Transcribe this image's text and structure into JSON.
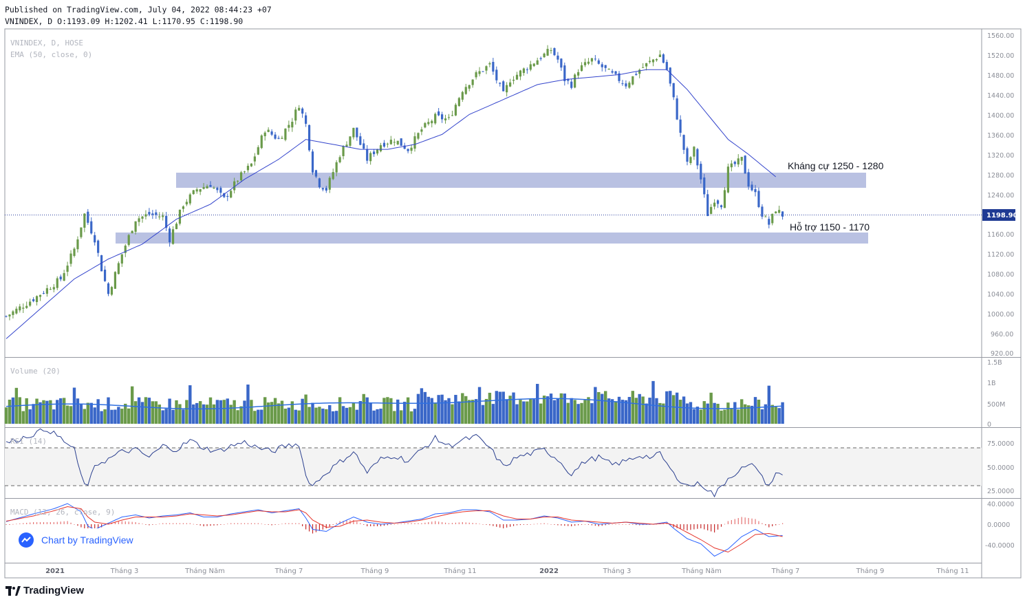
{
  "header": {
    "published": "Published on TradingView.com, July 04, 2022 08:44:23 +07",
    "ohlc": "VNINDEX, D O:1193.09 H:1202.41 L:1170.95 C:1198.90"
  },
  "panes": {
    "price": {
      "title": "VNINDEX, D, HOSE",
      "ema_label": "EMA (50, close, 0)"
    },
    "volume": {
      "title": "Volume (20)"
    },
    "rsi": {
      "title": "RSI (14)"
    },
    "macd": {
      "title": "MACD (12, 26, close, 9)"
    }
  },
  "annotations": {
    "resistance": "Kháng cự 1250 - 1280",
    "support": "Hỗ trợ 1150 - 1170"
  },
  "byline": "Chart by TradingView",
  "footer_brand": "TradingView",
  "colors": {
    "up": "#6a9a4a",
    "down": "#3a67c8",
    "ema": "#3344cc",
    "zone": "#b9c1e2",
    "rsi": "#2a3f8f",
    "macd": "#2962ff",
    "signal": "#e5332a"
  },
  "chart_data": [
    {
      "type": "candlestick",
      "symbol": "VNINDEX",
      "interval": "D",
      "exchange": "HOSE",
      "last_price": "1198.90",
      "y_ticks": [
        "1560.00",
        "1520.00",
        "1480.00",
        "1440.00",
        "1400.00",
        "1360.00",
        "1320.00",
        "1280.00",
        "1240.00",
        "1200.00",
        "1160.00",
        "1120.00",
        "1080.00",
        "1040.00",
        "1000.00",
        "960.00",
        "920.00"
      ],
      "ylim": [
        920,
        1570
      ],
      "x_ticks": [
        "2021",
        "Tháng 3",
        "Tháng Năm",
        "Tháng 7",
        "Tháng 9",
        "Tháng 11",
        "2022",
        "Tháng 3",
        "Tháng Năm",
        "Tháng 7",
        "Tháng 9",
        "Tháng 11"
      ],
      "close_path": [
        [
          0,
          995
        ],
        [
          8,
          1030
        ],
        [
          16,
          1070
        ],
        [
          20,
          1130
        ],
        [
          23,
          1200
        ],
        [
          26,
          1150
        ],
        [
          28,
          1090
        ],
        [
          30,
          1040
        ],
        [
          34,
          1120
        ],
        [
          38,
          1190
        ],
        [
          42,
          1200
        ],
        [
          46,
          1195
        ],
        [
          48,
          1150
        ],
        [
          52,
          1220
        ],
        [
          56,
          1250
        ],
        [
          60,
          1260
        ],
        [
          64,
          1230
        ],
        [
          68,
          1270
        ],
        [
          72,
          1300
        ],
        [
          76,
          1370
        ],
        [
          80,
          1350
        ],
        [
          84,
          1390
        ],
        [
          86,
          1420
        ],
        [
          88,
          1380
        ],
        [
          90,
          1290
        ],
        [
          92,
          1260
        ],
        [
          94,
          1250
        ],
        [
          98,
          1320
        ],
        [
          102,
          1370
        ],
        [
          106,
          1310
        ],
        [
          110,
          1340
        ],
        [
          114,
          1350
        ],
        [
          118,
          1330
        ],
        [
          122,
          1370
        ],
        [
          126,
          1395
        ],
        [
          130,
          1390
        ],
        [
          134,
          1450
        ],
        [
          138,
          1480
        ],
        [
          142,
          1500
        ],
        [
          146,
          1440
        ],
        [
          148,
          1470
        ],
        [
          152,
          1490
        ],
        [
          156,
          1510
        ],
        [
          160,
          1530
        ],
        [
          162,
          1510
        ],
        [
          164,
          1470
        ],
        [
          166,
          1460
        ],
        [
          168,
          1490
        ],
        [
          172,
          1510
        ],
        [
          176,
          1490
        ],
        [
          180,
          1470
        ],
        [
          182,
          1460
        ],
        [
          186,
          1490
        ],
        [
          190,
          1510
        ],
        [
          192,
          1520
        ],
        [
          194,
          1490
        ],
        [
          196,
          1430
        ],
        [
          198,
          1360
        ],
        [
          200,
          1300
        ],
        [
          202,
          1330
        ],
        [
          204,
          1270
        ],
        [
          206,
          1200
        ],
        [
          208,
          1230
        ],
        [
          210,
          1220
        ],
        [
          212,
          1290
        ],
        [
          214,
          1300
        ],
        [
          216,
          1310
        ],
        [
          218,
          1260
        ],
        [
          220,
          1240
        ],
        [
          222,
          1200
        ],
        [
          224,
          1180
        ],
        [
          226,
          1210
        ],
        [
          228,
          1198
        ]
      ],
      "ema_path": [
        [
          0,
          950
        ],
        [
          10,
          1010
        ],
        [
          20,
          1070
        ],
        [
          30,
          1110
        ],
        [
          40,
          1140
        ],
        [
          50,
          1190
        ],
        [
          60,
          1220
        ],
        [
          70,
          1270
        ],
        [
          80,
          1310
        ],
        [
          88,
          1350
        ],
        [
          96,
          1340
        ],
        [
          104,
          1330
        ],
        [
          112,
          1330
        ],
        [
          120,
          1340
        ],
        [
          128,
          1360
        ],
        [
          136,
          1400
        ],
        [
          146,
          1430
        ],
        [
          156,
          1460
        ],
        [
          164,
          1470
        ],
        [
          172,
          1475
        ],
        [
          180,
          1480
        ],
        [
          188,
          1490
        ],
        [
          194,
          1490
        ],
        [
          200,
          1450
        ],
        [
          206,
          1400
        ],
        [
          212,
          1350
        ],
        [
          218,
          1320
        ],
        [
          226,
          1275
        ]
      ],
      "zones": [
        {
          "label": "Kháng cự 1250 - 1280",
          "from": 1250,
          "to": 1280
        },
        {
          "label": "Hỗ trợ 1150 - 1170",
          "from": 1150,
          "to": 1170
        }
      ]
    },
    {
      "type": "bar",
      "name": "Volume",
      "y_ticks": [
        "1.5B",
        "1B",
        "500M",
        "0"
      ],
      "ylim": [
        0,
        1500000000
      ],
      "ma_length": 20
    },
    {
      "type": "line",
      "name": "RSI (14)",
      "y_ticks": [
        "75.0000",
        "50.0000",
        "25.0000"
      ],
      "ylim": [
        15,
        95
      ],
      "bands": [
        30,
        70
      ],
      "path": [
        [
          0,
          75
        ],
        [
          6,
          82
        ],
        [
          12,
          90
        ],
        [
          16,
          80
        ],
        [
          20,
          68
        ],
        [
          22,
          40
        ],
        [
          24,
          28
        ],
        [
          26,
          52
        ],
        [
          30,
          58
        ],
        [
          34,
          66
        ],
        [
          38,
          68
        ],
        [
          42,
          60
        ],
        [
          46,
          72
        ],
        [
          50,
          68
        ],
        [
          54,
          78
        ],
        [
          58,
          70
        ],
        [
          62,
          66
        ],
        [
          66,
          72
        ],
        [
          70,
          76
        ],
        [
          74,
          70
        ],
        [
          78,
          66
        ],
        [
          82,
          72
        ],
        [
          86,
          74
        ],
        [
          88,
          40
        ],
        [
          90,
          30
        ],
        [
          94,
          44
        ],
        [
          98,
          55
        ],
        [
          102,
          66
        ],
        [
          106,
          44
        ],
        [
          110,
          58
        ],
        [
          114,
          62
        ],
        [
          118,
          56
        ],
        [
          122,
          68
        ],
        [
          126,
          80
        ],
        [
          130,
          72
        ],
        [
          134,
          78
        ],
        [
          138,
          82
        ],
        [
          142,
          70
        ],
        [
          146,
          50
        ],
        [
          150,
          60
        ],
        [
          154,
          64
        ],
        [
          158,
          68
        ],
        [
          162,
          58
        ],
        [
          166,
          42
        ],
        [
          170,
          56
        ],
        [
          174,
          60
        ],
        [
          178,
          52
        ],
        [
          182,
          56
        ],
        [
          186,
          62
        ],
        [
          190,
          60
        ],
        [
          192,
          64
        ],
        [
          196,
          42
        ],
        [
          200,
          30
        ],
        [
          204,
          32
        ],
        [
          208,
          20
        ],
        [
          212,
          38
        ],
        [
          216,
          48
        ],
        [
          220,
          52
        ],
        [
          222,
          38
        ],
        [
          224,
          30
        ],
        [
          226,
          42
        ]
      ]
    },
    {
      "type": "line",
      "name": "MACD (12, 26, close, 9)",
      "y_ticks": [
        "40.0000",
        "0.0000",
        "-40.0000"
      ],
      "ylim": [
        -62,
        48
      ],
      "macd_path": [
        [
          0,
          5
        ],
        [
          8,
          20
        ],
        [
          14,
          30
        ],
        [
          18,
          40
        ],
        [
          22,
          24
        ],
        [
          24,
          -4
        ],
        [
          26,
          -10
        ],
        [
          30,
          2
        ],
        [
          34,
          14
        ],
        [
          38,
          18
        ],
        [
          42,
          12
        ],
        [
          46,
          16
        ],
        [
          50,
          18
        ],
        [
          54,
          22
        ],
        [
          58,
          14
        ],
        [
          62,
          14
        ],
        [
          66,
          20
        ],
        [
          70,
          24
        ],
        [
          74,
          28
        ],
        [
          78,
          22
        ],
        [
          82,
          26
        ],
        [
          86,
          30
        ],
        [
          88,
          12
        ],
        [
          90,
          -10
        ],
        [
          94,
          -14
        ],
        [
          98,
          2
        ],
        [
          102,
          14
        ],
        [
          106,
          4
        ],
        [
          110,
          0
        ],
        [
          114,
          2
        ],
        [
          118,
          6
        ],
        [
          122,
          10
        ],
        [
          126,
          20
        ],
        [
          130,
          22
        ],
        [
          134,
          28
        ],
        [
          138,
          28
        ],
        [
          142,
          24
        ],
        [
          146,
          8
        ],
        [
          150,
          8
        ],
        [
          154,
          10
        ],
        [
          158,
          16
        ],
        [
          162,
          12
        ],
        [
          166,
          4
        ],
        [
          170,
          6
        ],
        [
          174,
          0
        ],
        [
          178,
          2
        ],
        [
          182,
          4
        ],
        [
          186,
          0
        ],
        [
          190,
          0
        ],
        [
          194,
          4
        ],
        [
          196,
          -8
        ],
        [
          200,
          -28
        ],
        [
          204,
          -38
        ],
        [
          208,
          -62
        ],
        [
          212,
          -48
        ],
        [
          216,
          -24
        ],
        [
          220,
          -10
        ],
        [
          224,
          -24
        ],
        [
          228,
          -22
        ]
      ],
      "signal_path": [
        [
          0,
          6
        ],
        [
          8,
          16
        ],
        [
          14,
          26
        ],
        [
          18,
          34
        ],
        [
          22,
          30
        ],
        [
          24,
          14
        ],
        [
          26,
          4
        ],
        [
          30,
          0
        ],
        [
          34,
          8
        ],
        [
          38,
          14
        ],
        [
          42,
          14
        ],
        [
          46,
          14
        ],
        [
          50,
          16
        ],
        [
          54,
          20
        ],
        [
          58,
          18
        ],
        [
          62,
          16
        ],
        [
          66,
          18
        ],
        [
          70,
          22
        ],
        [
          74,
          26
        ],
        [
          78,
          24
        ],
        [
          82,
          24
        ],
        [
          86,
          28
        ],
        [
          88,
          22
        ],
        [
          90,
          8
        ],
        [
          94,
          -6
        ],
        [
          98,
          -4
        ],
        [
          102,
          6
        ],
        [
          106,
          8
        ],
        [
          110,
          4
        ],
        [
          114,
          2
        ],
        [
          118,
          4
        ],
        [
          122,
          8
        ],
        [
          126,
          14
        ],
        [
          130,
          20
        ],
        [
          134,
          24
        ],
        [
          138,
          26
        ],
        [
          142,
          26
        ],
        [
          146,
          16
        ],
        [
          150,
          10
        ],
        [
          154,
          10
        ],
        [
          158,
          14
        ],
        [
          162,
          14
        ],
        [
          166,
          8
        ],
        [
          170,
          6
        ],
        [
          174,
          4
        ],
        [
          178,
          2
        ],
        [
          182,
          4
        ],
        [
          186,
          2
        ],
        [
          190,
          0
        ],
        [
          194,
          2
        ],
        [
          196,
          -2
        ],
        [
          200,
          -16
        ],
        [
          204,
          -30
        ],
        [
          208,
          -46
        ],
        [
          212,
          -54
        ],
        [
          216,
          -38
        ],
        [
          220,
          -20
        ],
        [
          224,
          -18
        ],
        [
          228,
          -24
        ]
      ]
    }
  ]
}
